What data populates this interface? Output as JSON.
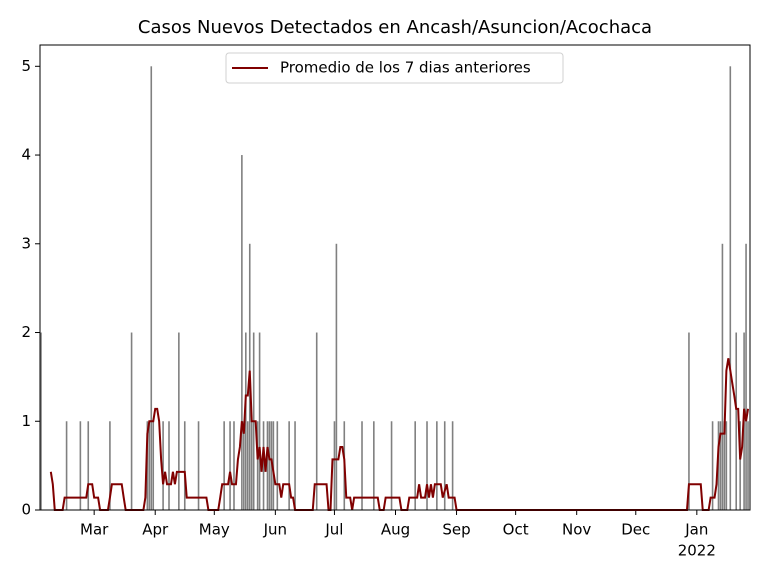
{
  "chart_data": {
    "type": "bar-line",
    "title": "Casos Nuevos Detectados en Ancash/Asuncion/Acochaca",
    "xlim": [
      0.5,
      361
    ],
    "xticks": [
      {
        "value": 28,
        "label": "Mar"
      },
      {
        "value": 59,
        "label": "Apr"
      },
      {
        "value": 89,
        "label": "May"
      },
      {
        "value": 120,
        "label": "Jun"
      },
      {
        "value": 150,
        "label": "Jul"
      },
      {
        "value": 181,
        "label": "Aug"
      },
      {
        "value": 212,
        "label": "Sep"
      },
      {
        "value": 242,
        "label": "Oct"
      },
      {
        "value": 273,
        "label": "Nov"
      },
      {
        "value": 303,
        "label": "Dec"
      },
      {
        "value": 334,
        "label": "Jan"
      }
    ],
    "x_year_label": {
      "value": 334,
      "label": "2022"
    },
    "ylim": [
      0,
      5.24
    ],
    "yticks": [
      0,
      1,
      2,
      3,
      4,
      5
    ],
    "legend": "upper center",
    "bars": {
      "color": "#808080",
      "x": [
        1,
        14,
        21,
        25,
        36,
        47,
        55,
        56,
        57,
        58,
        63,
        66,
        71,
        74,
        81,
        94,
        97,
        99,
        103,
        104,
        105,
        106,
        107,
        108,
        109,
        111,
        112,
        114,
        116,
        117,
        118,
        119,
        121,
        127,
        130,
        141,
        150,
        151,
        155,
        164,
        170,
        179,
        191,
        197,
        202,
        206,
        210,
        330,
        342,
        345,
        346,
        347,
        348,
        349,
        351,
        354,
        356,
        358,
        359,
        360
      ],
      "values": [
        2,
        1,
        1,
        1,
        1,
        2,
        1,
        1,
        5,
        1,
        1,
        1,
        2,
        1,
        1,
        1,
        1,
        1,
        4,
        1,
        2,
        1,
        3,
        1,
        2,
        1,
        2,
        1,
        1,
        1,
        1,
        1,
        1,
        1,
        1,
        2,
        1,
        3,
        1,
        1,
        1,
        1,
        1,
        1,
        1,
        1,
        1,
        2,
        1,
        1,
        1,
        3,
        1,
        1,
        5,
        2,
        1,
        2,
        3,
        1
      ]
    },
    "series": [
      {
        "name": "Promedio de los 7 dias anteriores",
        "color": "#800000",
        "x": [
          6,
          7,
          8,
          12,
          13,
          24,
          25,
          27,
          28,
          30,
          31,
          35,
          36,
          37,
          42,
          43,
          44,
          53,
          54,
          55,
          56,
          58,
          59,
          60,
          61,
          62,
          63,
          64,
          65,
          67,
          68,
          69,
          70,
          74,
          75,
          85,
          86,
          91,
          92,
          93,
          96,
          97,
          98,
          100,
          101,
          102,
          103,
          104,
          105,
          106,
          107,
          108,
          110,
          111,
          112,
          113,
          114,
          115,
          116,
          117,
          118,
          119,
          120,
          122,
          123,
          124,
          127,
          128,
          129,
          130,
          139,
          140,
          146,
          147,
          148,
          149,
          152,
          153,
          154,
          155,
          156,
          158,
          159,
          160,
          172,
          173,
          175,
          176,
          183,
          184,
          187,
          188,
          192,
          193,
          194,
          196,
          197,
          198,
          199,
          200,
          201,
          204,
          205,
          207,
          208,
          211,
          212,
          329,
          330,
          336,
          337,
          340,
          341,
          343,
          344,
          345,
          346,
          348,
          349,
          350,
          351,
          353,
          354,
          355,
          356,
          357,
          358,
          359,
          360
        ],
        "values": [
          0.43,
          0.29,
          0,
          0,
          0.14,
          0.14,
          0.29,
          0.29,
          0.14,
          0.14,
          0,
          0,
          0.14,
          0.29,
          0.29,
          0.14,
          0,
          0,
          0.14,
          0.86,
          1,
          1,
          1.14,
          1.14,
          1,
          0.57,
          0.29,
          0.43,
          0.29,
          0.29,
          0.43,
          0.29,
          0.43,
          0.43,
          0.14,
          0.14,
          0,
          0,
          0.14,
          0.29,
          0.29,
          0.43,
          0.29,
          0.29,
          0.57,
          0.71,
          1,
          0.86,
          1.29,
          1.29,
          1.57,
          1,
          1,
          0.57,
          0.71,
          0.43,
          0.71,
          0.43,
          0.71,
          0.57,
          0.57,
          0.43,
          0.29,
          0.29,
          0.14,
          0.29,
          0.29,
          0.14,
          0.14,
          0,
          0,
          0.29,
          0.29,
          0,
          0,
          0.57,
          0.57,
          0.71,
          0.71,
          0.57,
          0.14,
          0.14,
          0,
          0.14,
          0.14,
          0,
          0,
          0.14,
          0.14,
          0,
          0,
          0.14,
          0.14,
          0.29,
          0.14,
          0.14,
          0.29,
          0.14,
          0.29,
          0.14,
          0.29,
          0.29,
          0.14,
          0.29,
          0.14,
          0.14,
          0,
          0,
          0.29,
          0.29,
          0,
          0,
          0.14,
          0.14,
          0.29,
          0.71,
          0.86,
          0.86,
          1.57,
          1.71,
          1.57,
          1.29,
          1.14,
          1.14,
          0.57,
          0.71,
          1.14,
          1.0,
          1.14
        ]
      }
    ]
  }
}
